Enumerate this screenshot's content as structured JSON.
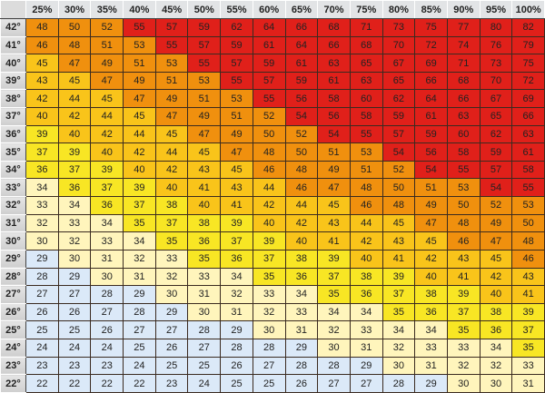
{
  "chart_data": {
    "type": "heatmap",
    "title": "",
    "columns": [
      "25%",
      "30%",
      "35%",
      "40%",
      "45%",
      "50%",
      "55%",
      "60%",
      "65%",
      "70%",
      "75%",
      "80%",
      "85%",
      "90%",
      "95%",
      "100%"
    ],
    "rows": [
      "42°",
      "41°",
      "40°",
      "39°",
      "38°",
      "37°",
      "36°",
      "35°",
      "34°",
      "33°",
      "32°",
      "31°",
      "30°",
      "29°",
      "28°",
      "27°",
      "26°",
      "25°",
      "24°",
      "23°",
      "22°"
    ],
    "values": [
      [
        48,
        50,
        52,
        55,
        57,
        59,
        62,
        64,
        66,
        68,
        71,
        73,
        75,
        77,
        80,
        82
      ],
      [
        46,
        48,
        51,
        53,
        55,
        57,
        59,
        61,
        64,
        66,
        68,
        70,
        72,
        74,
        76,
        79
      ],
      [
        45,
        47,
        49,
        51,
        53,
        55,
        57,
        59,
        61,
        63,
        65,
        67,
        69,
        71,
        73,
        75
      ],
      [
        43,
        45,
        47,
        49,
        51,
        53,
        55,
        57,
        59,
        61,
        63,
        65,
        66,
        68,
        70,
        72
      ],
      [
        42,
        44,
        45,
        47,
        49,
        51,
        53,
        55,
        56,
        58,
        60,
        62,
        64,
        66,
        67,
        69
      ],
      [
        40,
        42,
        44,
        45,
        47,
        49,
        51,
        52,
        54,
        56,
        58,
        59,
        61,
        63,
        65,
        66
      ],
      [
        39,
        40,
        42,
        44,
        45,
        47,
        49,
        50,
        52,
        54,
        55,
        57,
        59,
        60,
        62,
        63
      ],
      [
        37,
        39,
        40,
        42,
        44,
        45,
        47,
        48,
        50,
        51,
        53,
        54,
        56,
        58,
        59,
        61
      ],
      [
        36,
        37,
        39,
        40,
        42,
        43,
        45,
        46,
        48,
        49,
        51,
        52,
        54,
        55,
        57,
        58
      ],
      [
        34,
        36,
        37,
        39,
        40,
        41,
        43,
        44,
        46,
        47,
        48,
        50,
        51,
        53,
        54,
        55
      ],
      [
        33,
        34,
        36,
        37,
        38,
        40,
        41,
        42,
        44,
        45,
        46,
        48,
        49,
        50,
        52,
        53
      ],
      [
        32,
        33,
        34,
        35,
        37,
        38,
        39,
        40,
        42,
        43,
        44,
        45,
        47,
        48,
        49,
        50
      ],
      [
        30,
        32,
        33,
        34,
        35,
        36,
        37,
        39,
        40,
        41,
        42,
        43,
        45,
        46,
        47,
        48
      ],
      [
        29,
        30,
        31,
        32,
        33,
        35,
        36,
        37,
        38,
        39,
        40,
        41,
        42,
        43,
        45,
        46
      ],
      [
        28,
        29,
        30,
        31,
        32,
        33,
        34,
        35,
        36,
        37,
        38,
        39,
        40,
        41,
        42,
        43
      ],
      [
        27,
        27,
        28,
        29,
        30,
        31,
        32,
        33,
        34,
        35,
        36,
        37,
        38,
        39,
        40,
        41
      ],
      [
        26,
        26,
        27,
        28,
        29,
        30,
        31,
        32,
        33,
        34,
        34,
        35,
        36,
        37,
        38,
        39
      ],
      [
        25,
        25,
        26,
        27,
        27,
        28,
        29,
        30,
        31,
        32,
        33,
        34,
        34,
        35,
        36,
        37
      ],
      [
        24,
        24,
        24,
        25,
        26,
        27,
        28,
        28,
        29,
        30,
        31,
        32,
        33,
        33,
        34,
        35
      ],
      [
        23,
        23,
        23,
        24,
        25,
        25,
        26,
        27,
        28,
        28,
        29,
        30,
        31,
        32,
        32,
        33
      ],
      [
        22,
        22,
        22,
        22,
        23,
        24,
        25,
        25,
        26,
        27,
        27,
        28,
        29,
        30,
        30,
        31
      ]
    ],
    "color_bands": [
      {
        "min": 54,
        "color": "#e0201a"
      },
      {
        "min": 46,
        "color": "#f0900e"
      },
      {
        "min": 40,
        "color": "#f9c41a"
      },
      {
        "min": 35,
        "color": "#f8e624"
      },
      {
        "min": 30,
        "color": "#fff5bc"
      },
      {
        "min": 0,
        "color": "#dbe9f8"
      }
    ]
  }
}
